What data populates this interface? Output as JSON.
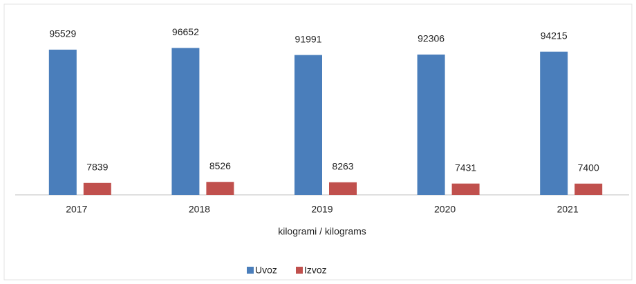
{
  "chart_data": {
    "type": "bar",
    "categories": [
      "2017",
      "2018",
      "2019",
      "2020",
      "2021"
    ],
    "series": [
      {
        "name": "Uvoz",
        "color": "#4a7ebb",
        "values": [
          95529,
          96652,
          91991,
          92306,
          94215
        ]
      },
      {
        "name": "Izvoz",
        "color": "#c0504d",
        "values": [
          7839,
          8526,
          8263,
          7431,
          7400
        ]
      }
    ],
    "x_label": "kilogrami / kilograms",
    "ylim": [
      0,
      100000
    ],
    "legend": "bottom"
  }
}
